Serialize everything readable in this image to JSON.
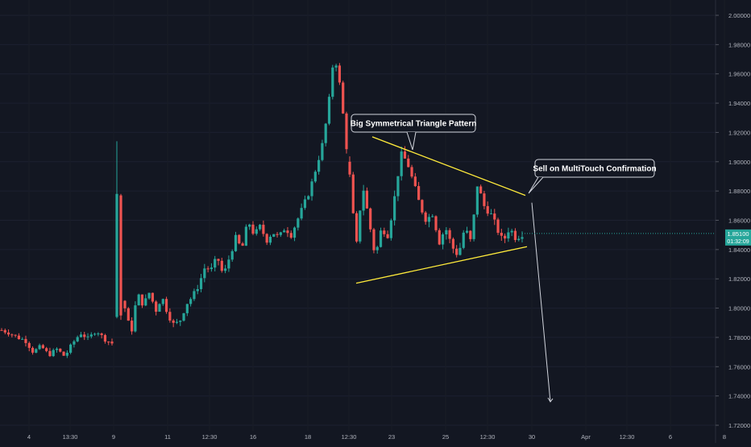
{
  "chart_data": {
    "type": "candlestick",
    "y_axis_ticks": [
      "2.00000",
      "1.98000",
      "1.96000",
      "1.94000",
      "1.92000",
      "1.90000",
      "1.88000",
      "1.86000",
      "1.84000",
      "1.82000",
      "1.80000",
      "1.78000",
      "1.76000",
      "1.74000",
      "1.72000"
    ],
    "ylim": [
      1.7165,
      2.0065
    ],
    "x_axis_ticks": [
      "4",
      "13:30",
      "9",
      "11",
      "12:30",
      "16",
      "18",
      "12:30",
      "23",
      "25",
      "12:30",
      "30",
      "Apr",
      "12:30",
      "6",
      "8"
    ],
    "last_price": "1.85100",
    "countdown": "01:32:09",
    "colors": {
      "up": "#26a69a",
      "down": "#ef5350",
      "background": "#131722",
      "trendline": "#ffeb3b",
      "annotation": "#b2b5be",
      "tag": "#26a69a"
    },
    "annotations": [
      {
        "text": "Big Symmetrical Triangle Pattern"
      },
      {
        "text": "Sell on MultiTouch Confirmation"
      }
    ],
    "trendlines": [
      {
        "name": "upper-trendline",
        "from": [
          1.917
        ],
        "to": [
          1.877
        ]
      },
      {
        "name": "lower-trendline",
        "from": [
          1.817
        ],
        "to": [
          1.842
        ]
      }
    ],
    "projection": {
      "from": 1.872,
      "to": 1.736
    },
    "segments": [
      {
        "start": 1.785,
        "points": [
          1.785,
          1.783,
          1.78,
          1.778,
          1.77,
          1.774,
          1.768,
          1.772,
          1.767,
          1.776,
          1.783,
          1.779,
          1.785,
          1.779,
          1.776
        ],
        "vol": 0.003
      },
      {
        "spikes": [
          [
            1.794,
            1.878,
            1.793,
            1.914
          ],
          [
            1.877,
            1.795,
            1.792,
            1.878
          ]
        ]
      },
      {
        "start": 1.805,
        "points": [
          1.8,
          1.782,
          1.81,
          1.802,
          1.811,
          1.798,
          1.808,
          1.796,
          1.788,
          1.792,
          1.803,
          1.808,
          1.816,
          1.828,
          1.826,
          1.835,
          1.822,
          1.835,
          1.848,
          1.84,
          1.86,
          1.85,
          1.856,
          1.846,
          1.852,
          1.848,
          1.855,
          1.85,
          1.86,
          1.87,
          1.88,
          1.895,
          1.91,
          1.935,
          1.975,
          1.95,
          1.91
        ],
        "vol": 0.004
      },
      {
        "start": 1.9,
        "points": [
          1.89,
          1.84,
          1.885,
          1.86,
          1.835,
          1.855,
          1.85,
          1.875,
          1.905,
          1.9,
          1.885,
          1.87,
          1.86,
          1.865,
          1.845,
          1.855,
          1.842,
          1.836,
          1.855,
          1.845,
          1.885,
          1.87,
          1.865,
          1.855,
          1.845,
          1.855,
          1.848,
          1.851
        ],
        "vol": 0.005
      }
    ]
  }
}
